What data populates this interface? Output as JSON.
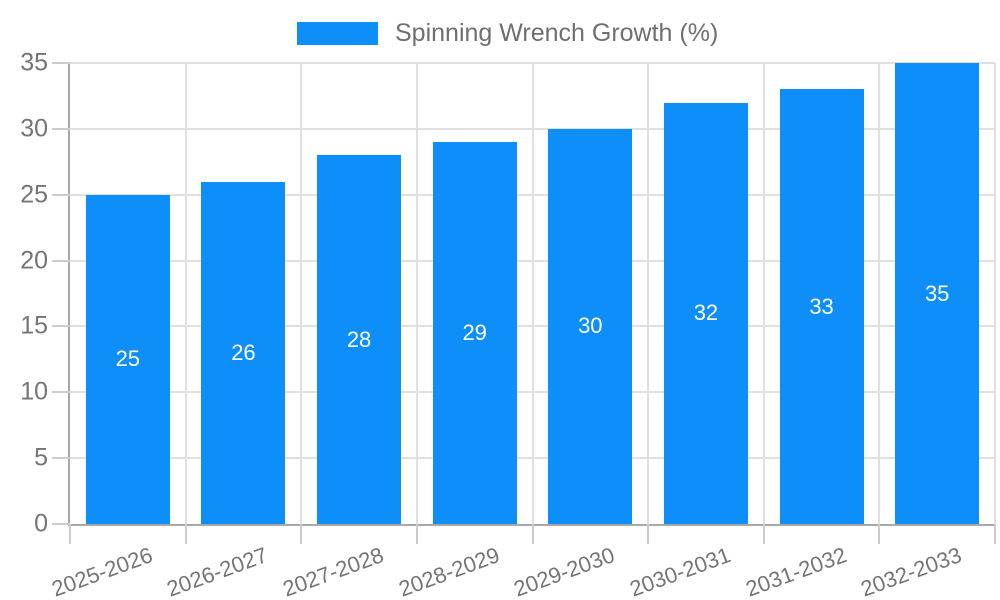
{
  "chart_data": {
    "type": "bar",
    "title": "",
    "legend": {
      "label": "Spinning Wrench Growth (%)",
      "position": "top-center"
    },
    "categories": [
      "2025-2026",
      "2026-2027",
      "2027-2028",
      "2028-2029",
      "2029-2030",
      "2030-2031",
      "2031-2032",
      "2032-2033"
    ],
    "values": [
      25,
      26,
      28,
      29,
      30,
      32,
      33,
      35
    ],
    "data_labels": [
      "25",
      "26",
      "28",
      "29",
      "30",
      "32",
      "33",
      "35"
    ],
    "y_ticks": [
      "0",
      "5",
      "10",
      "15",
      "20",
      "25",
      "30",
      "35"
    ],
    "ylim": [
      0,
      35
    ],
    "ytick_step": 5,
    "grid": "on",
    "x_label_rotation_deg": -20,
    "colors": {
      "bar": "#0d8ef8",
      "data_label": "#ffffff",
      "axis_line": "#a8a8a8",
      "gridline": "#e0e0e0",
      "tick_mark": "#cccccc",
      "tick_text": "#757575",
      "legend_text": "#6f6f6f"
    }
  }
}
